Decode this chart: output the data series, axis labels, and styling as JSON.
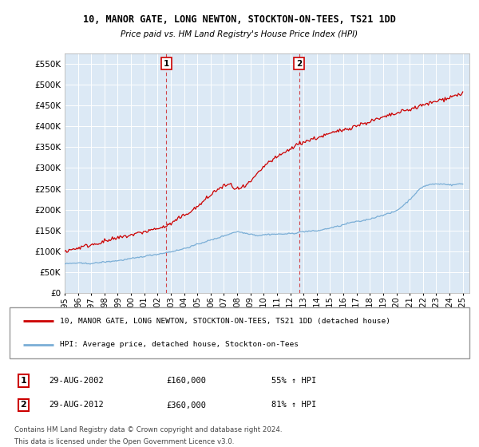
{
  "title": "10, MANOR GATE, LONG NEWTON, STOCKTON-ON-TEES, TS21 1DD",
  "subtitle": "Price paid vs. HM Land Registry's House Price Index (HPI)",
  "background_color": "#ffffff",
  "plot_bg_color": "#dce9f5",
  "grid_color": "#ffffff",
  "red_line_color": "#cc0000",
  "blue_line_color": "#7aaed6",
  "vline_color": "#cc0000",
  "sale1_date": "29-AUG-2002",
  "sale1_price": "£160,000",
  "sale1_hpi": "55% ↑ HPI",
  "sale2_date": "29-AUG-2012",
  "sale2_price": "£360,000",
  "sale2_hpi": "81% ↑ HPI",
  "legend1": "10, MANOR GATE, LONG NEWTON, STOCKTON-ON-TEES, TS21 1DD (detached house)",
  "legend2": "HPI: Average price, detached house, Stockton-on-Tees",
  "footer1": "Contains HM Land Registry data © Crown copyright and database right 2024.",
  "footer2": "This data is licensed under the Open Government Licence v3.0.",
  "ylim": [
    0,
    575000
  ],
  "yticks": [
    0,
    50000,
    100000,
    150000,
    200000,
    250000,
    300000,
    350000,
    400000,
    450000,
    500000,
    550000
  ],
  "ytick_labels": [
    "£0",
    "£50K",
    "£100K",
    "£150K",
    "£200K",
    "£250K",
    "£300K",
    "£350K",
    "£400K",
    "£450K",
    "£500K",
    "£550K"
  ],
  "xmin": 1995,
  "xmax": 2025.5,
  "sale1_yr": 2002.667,
  "sale2_yr": 2012.667
}
